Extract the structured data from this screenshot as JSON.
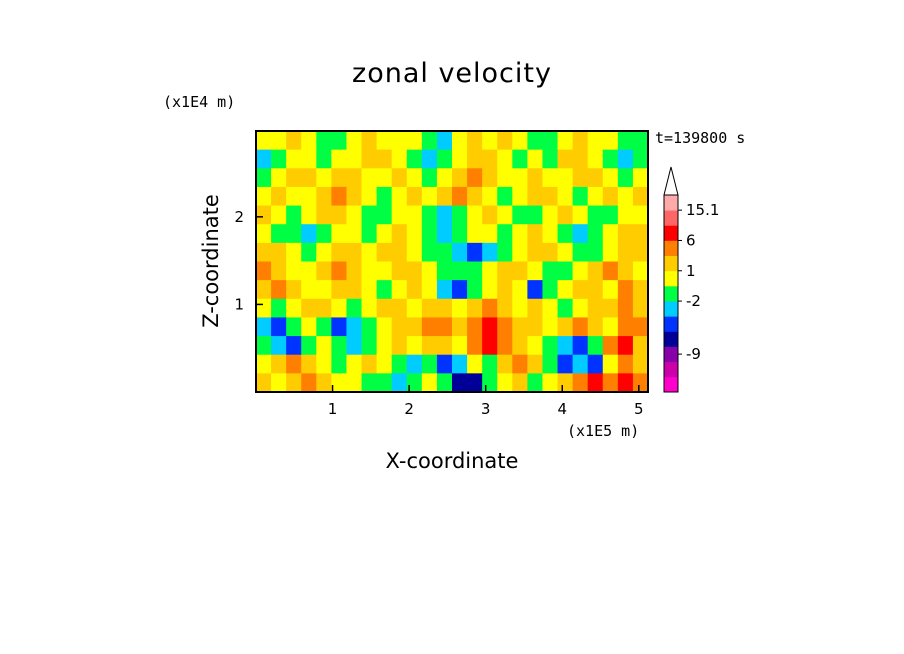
{
  "chart_data": {
    "type": "heatmap",
    "title": "zonal velocity",
    "xlabel": "X-coordinate",
    "ylabel": "Z-coordinate",
    "x_unit": "(x1E5 m)",
    "y_unit": "(x1E4 m)",
    "timestamp": "t=139800 s",
    "xlim": [
      0,
      5.12
    ],
    "ylim": [
      0,
      2.98
    ],
    "x_ticks": [
      "1",
      "2",
      "3",
      "4",
      "5"
    ],
    "y_ticks": [
      "1",
      "2"
    ],
    "colorbar": {
      "levels": [
        {
          "color": "#ff00cc"
        },
        {
          "color": "#cc00aa"
        },
        {
          "color": "#8800aa"
        },
        {
          "color": "#000099"
        },
        {
          "color": "#0033ff"
        },
        {
          "color": "#00ccff"
        },
        {
          "color": "#00ff44"
        },
        {
          "color": "#ffff00"
        },
        {
          "color": "#ffcc00"
        },
        {
          "color": "#ff8000"
        },
        {
          "color": "#ff0000"
        },
        {
          "color": "#ff6666"
        },
        {
          "color": "#ffaaaa"
        }
      ],
      "labels": [
        {
          "text": "15.1",
          "level_edge": 12
        },
        {
          "text": "6",
          "level_edge": 10
        },
        {
          "text": "1",
          "level_edge": 8
        },
        {
          "text": "-2",
          "level_edge": 6
        },
        {
          "text": "-9",
          "level_edge": 2.5
        }
      ],
      "extend": "max"
    },
    "field": {
      "description_levels": "values indexed into colorbar levels",
      "rows": 14,
      "cols": 26,
      "grid": [
        [
          7,
          7,
          8,
          7,
          6,
          6,
          7,
          8,
          7,
          7,
          7,
          6,
          5,
          7,
          8,
          7,
          8,
          7,
          6,
          6,
          7,
          8,
          7,
          7,
          6,
          6
        ],
        [
          5,
          6,
          7,
          7,
          6,
          7,
          7,
          8,
          8,
          7,
          6,
          5,
          6,
          7,
          8,
          8,
          7,
          6,
          7,
          6,
          8,
          8,
          7,
          6,
          5,
          6
        ],
        [
          6,
          7,
          8,
          8,
          7,
          8,
          8,
          7,
          7,
          8,
          7,
          6,
          7,
          8,
          9,
          8,
          7,
          7,
          8,
          7,
          7,
          8,
          8,
          7,
          6,
          7
        ],
        [
          7,
          8,
          7,
          7,
          8,
          9,
          8,
          7,
          6,
          7,
          8,
          7,
          8,
          9,
          8,
          7,
          6,
          7,
          8,
          8,
          7,
          6,
          7,
          8,
          7,
          8
        ],
        [
          8,
          7,
          6,
          7,
          8,
          8,
          7,
          6,
          6,
          7,
          7,
          6,
          5,
          6,
          7,
          8,
          7,
          6,
          6,
          7,
          8,
          7,
          6,
          6,
          7,
          7
        ],
        [
          7,
          6,
          6,
          5,
          6,
          7,
          7,
          6,
          7,
          8,
          7,
          6,
          5,
          6,
          7,
          7,
          6,
          7,
          8,
          7,
          6,
          5,
          6,
          7,
          8,
          8
        ],
        [
          8,
          8,
          7,
          6,
          7,
          8,
          8,
          7,
          8,
          8,
          7,
          6,
          6,
          5,
          4,
          5,
          6,
          7,
          8,
          8,
          7,
          6,
          6,
          7,
          8,
          8
        ],
        [
          9,
          8,
          7,
          7,
          8,
          9,
          8,
          7,
          7,
          8,
          8,
          7,
          6,
          6,
          6,
          7,
          8,
          8,
          7,
          6,
          6,
          7,
          8,
          9,
          8,
          7
        ],
        [
          8,
          9,
          8,
          7,
          7,
          8,
          8,
          7,
          6,
          7,
          8,
          7,
          5,
          4,
          6,
          7,
          8,
          7,
          4,
          6,
          7,
          8,
          8,
          7,
          9,
          8
        ],
        [
          7,
          6,
          7,
          8,
          8,
          7,
          6,
          7,
          8,
          8,
          7,
          8,
          8,
          7,
          8,
          9,
          8,
          7,
          8,
          7,
          6,
          7,
          8,
          8,
          9,
          8
        ],
        [
          5,
          4,
          6,
          7,
          6,
          4,
          5,
          6,
          7,
          8,
          8,
          9,
          9,
          8,
          9,
          10,
          9,
          8,
          8,
          7,
          8,
          9,
          8,
          7,
          9,
          9
        ],
        [
          6,
          5,
          4,
          6,
          7,
          6,
          5,
          6,
          7,
          8,
          7,
          8,
          8,
          7,
          9,
          10,
          9,
          8,
          7,
          6,
          5,
          4,
          6,
          9,
          10,
          8
        ],
        [
          7,
          8,
          9,
          8,
          7,
          6,
          7,
          8,
          7,
          6,
          5,
          6,
          4,
          5,
          7,
          6,
          8,
          9,
          8,
          6,
          4,
          5,
          4,
          7,
          9,
          8
        ],
        [
          8,
          7,
          8,
          9,
          8,
          7,
          7,
          6,
          6,
          5,
          6,
          7,
          6,
          3,
          3,
          6,
          7,
          8,
          6,
          7,
          8,
          9,
          10,
          9,
          10,
          9
        ]
      ]
    }
  }
}
